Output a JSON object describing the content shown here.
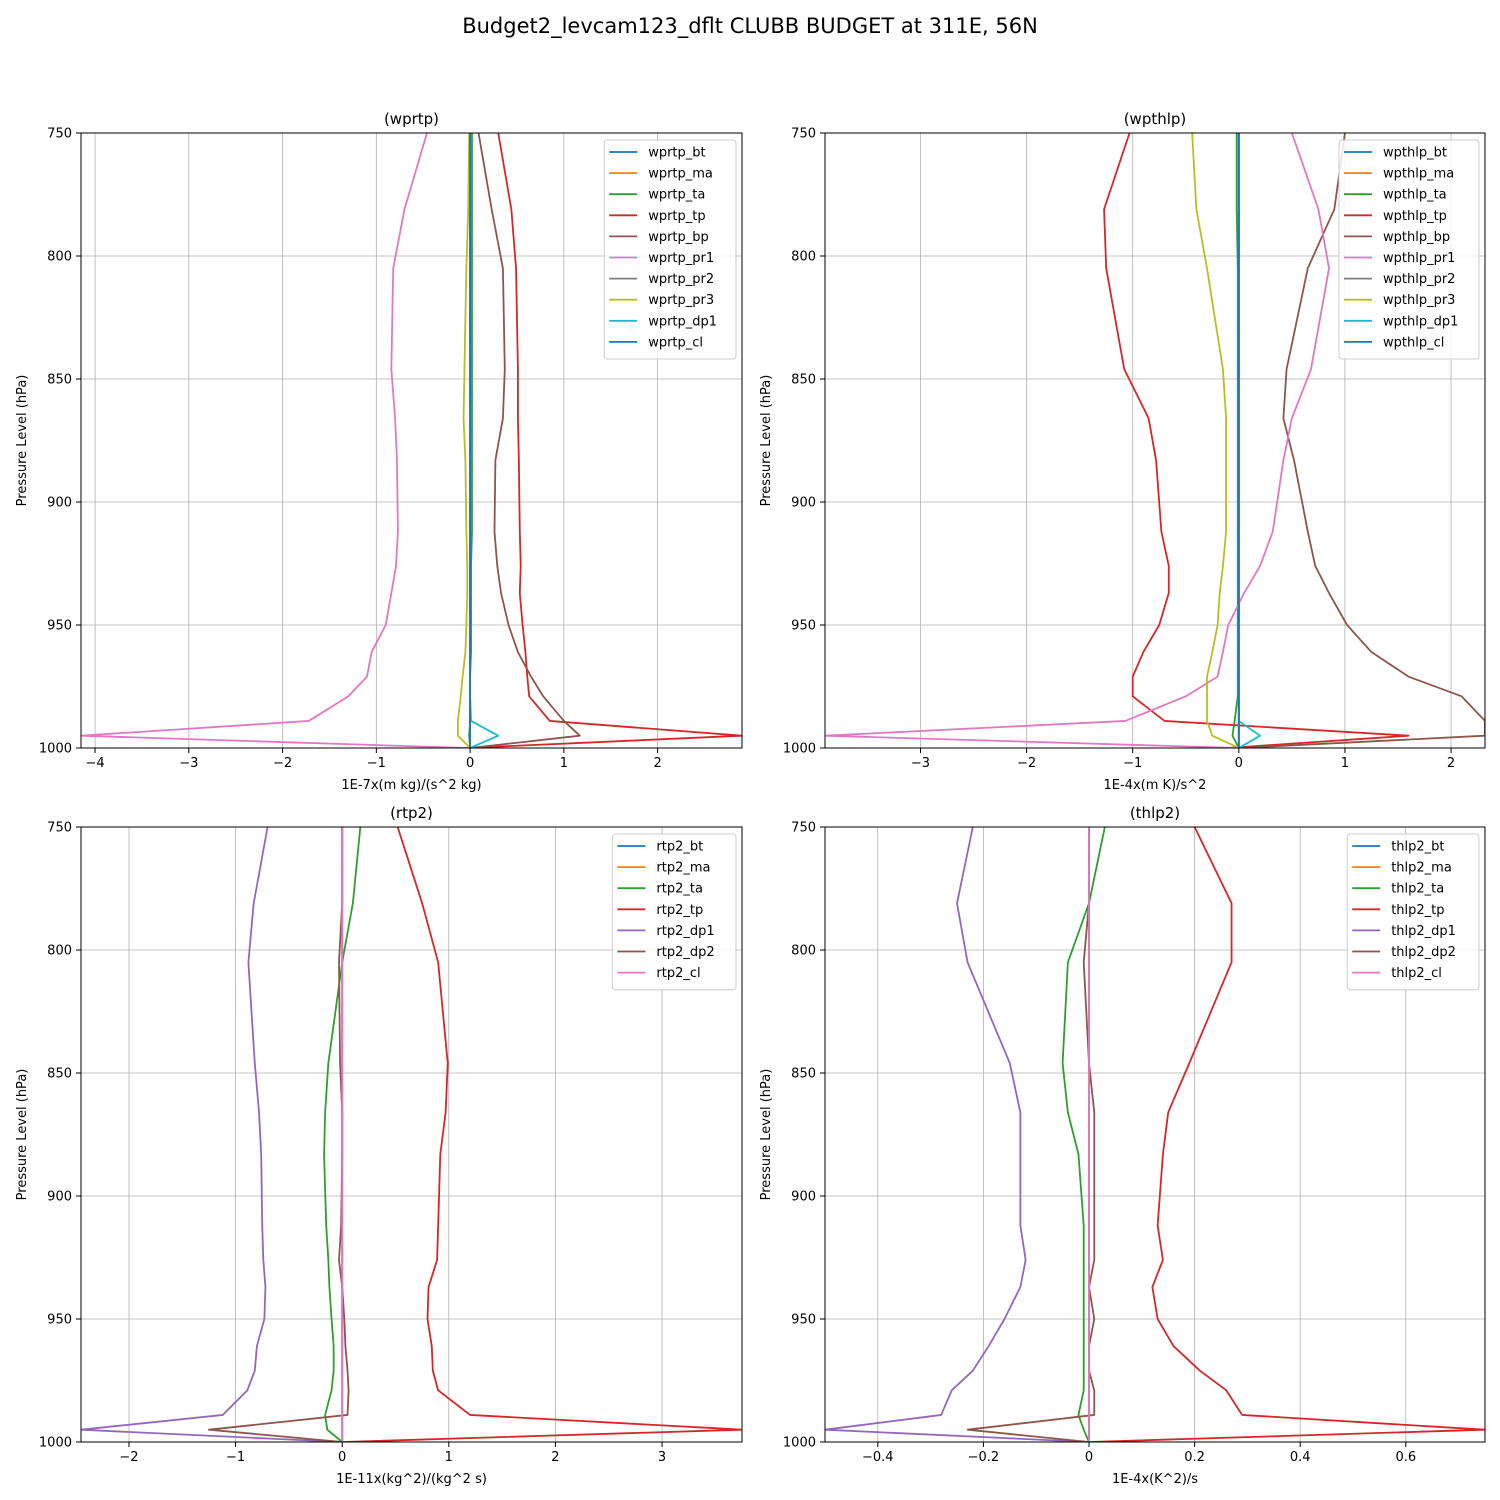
{
  "figure_title": "Budget2_levcam123_dflt CLUBB BUDGET at 311E, 56N",
  "colors": {
    "C0": "#1f77b4",
    "C1": "#ff7f0e",
    "C2": "#2ca02c",
    "C3": "#d62728",
    "C4": "#9467bd",
    "C5": "#8c564b",
    "C6": "#e377c2",
    "C7": "#7f7f7f",
    "C8": "#bcbd22",
    "C9": "#17becf",
    "grid": "#b0b0b0"
  },
  "chart_data": [
    {
      "type": "line",
      "title": "(wprtp)",
      "xlabel": "1E-7x(m kg)/(s^2 kg)",
      "ylabel": "Pressure Level (hPa)",
      "xlim": [
        -4.15,
        2.9
      ],
      "ylim": [
        1000,
        750
      ],
      "xticks": [
        -4,
        -3,
        -2,
        -1,
        0,
        1,
        2
      ],
      "yticks": [
        750,
        800,
        850,
        900,
        950,
        1000
      ],
      "grid": true,
      "legend_position": "top-right",
      "levels": [
        750,
        781,
        805,
        846,
        866,
        883,
        912,
        926,
        937,
        950,
        961,
        971,
        979,
        989,
        995,
        1000
      ],
      "series": [
        {
          "name": "wprtp_bt",
          "color": "C0",
          "values": [
            0,
            0,
            0,
            0,
            0,
            0,
            0,
            0,
            0,
            0,
            0,
            0,
            0,
            0,
            0,
            0
          ]
        },
        {
          "name": "wprtp_ma",
          "color": "C1",
          "values": [
            0,
            0,
            0,
            0,
            0,
            0,
            0,
            0,
            0,
            0,
            0,
            0,
            0,
            0,
            0,
            0
          ]
        },
        {
          "name": "wprtp_ta",
          "color": "C2",
          "values": [
            0.02,
            0.02,
            0.02,
            0.02,
            0.02,
            0.02,
            0.02,
            0.01,
            0.01,
            0.01,
            0.01,
            0.0,
            0.0,
            0.0,
            -0.01,
            0
          ]
        },
        {
          "name": "wprtp_tp",
          "color": "C3",
          "values": [
            0.3,
            0.44,
            0.49,
            0.51,
            0.51,
            0.52,
            0.53,
            0.54,
            0.53,
            0.56,
            0.59,
            0.61,
            0.63,
            0.85,
            2.9,
            -0.05
          ]
        },
        {
          "name": "wprtp_bp",
          "color": "C5",
          "values": [
            0.09,
            0.23,
            0.35,
            0.37,
            0.35,
            0.27,
            0.26,
            0.29,
            0.33,
            0.41,
            0.51,
            0.65,
            0.78,
            1.0,
            1.17,
            0.0
          ]
        },
        {
          "name": "wprtp_pr1",
          "color": "C6",
          "values": [
            -0.46,
            -0.7,
            -0.82,
            -0.84,
            -0.8,
            -0.78,
            -0.77,
            -0.79,
            -0.84,
            -0.9,
            -1.05,
            -1.1,
            -1.3,
            -1.72,
            -4.15,
            -0.02
          ]
        },
        {
          "name": "wprtp_pr2",
          "color": "C7",
          "values": [
            0,
            0,
            0,
            0,
            0,
            0,
            0,
            0,
            0,
            0,
            0,
            0,
            0,
            0,
            0,
            0
          ]
        },
        {
          "name": "wprtp_pr3",
          "color": "C8",
          "values": [
            -0.01,
            -0.02,
            -0.04,
            -0.06,
            -0.07,
            -0.05,
            -0.04,
            -0.03,
            -0.03,
            -0.04,
            -0.05,
            -0.08,
            -0.1,
            -0.13,
            -0.13,
            0
          ]
        },
        {
          "name": "wprtp_dp1",
          "color": "C9",
          "values": [
            0,
            0,
            0,
            0,
            0,
            0,
            0,
            0,
            0,
            0,
            0,
            0,
            0,
            0.01,
            0.3,
            0
          ]
        },
        {
          "name": "wprtp_cl",
          "color": "C0",
          "values": [
            0,
            0,
            0,
            0,
            0,
            0,
            0,
            0,
            0,
            0,
            0,
            0,
            0,
            0,
            0,
            0
          ]
        }
      ]
    },
    {
      "type": "line",
      "title": "(wpthlp)",
      "xlabel": "1E-4x(m K)/s^2",
      "ylabel": "Pressure Level (hPa)",
      "xlim": [
        -3.9,
        2.32
      ],
      "ylim": [
        1000,
        750
      ],
      "xticks": [
        -3,
        -2,
        -1,
        0,
        1,
        2
      ],
      "yticks": [
        750,
        800,
        850,
        900,
        950,
        1000
      ],
      "grid": true,
      "legend_position": "top-right",
      "levels": [
        750,
        781,
        805,
        846,
        866,
        883,
        912,
        926,
        937,
        950,
        961,
        971,
        979,
        989,
        995,
        1000
      ],
      "series": [
        {
          "name": "wpthlp_bt",
          "color": "C0",
          "values": [
            0,
            0,
            0,
            0,
            0,
            0,
            0,
            0,
            0,
            0,
            0,
            0,
            0,
            0,
            0,
            0
          ]
        },
        {
          "name": "wpthlp_ma",
          "color": "C1",
          "values": [
            0,
            0,
            0,
            0,
            0,
            0,
            0,
            0,
            0,
            0,
            0,
            0,
            0,
            0,
            0,
            0
          ]
        },
        {
          "name": "wpthlp_ta",
          "color": "C2",
          "values": [
            -0.02,
            -0.02,
            -0.01,
            -0.01,
            -0.01,
            -0.01,
            -0.01,
            -0.01,
            -0.01,
            -0.01,
            -0.01,
            -0.01,
            -0.01,
            -0.04,
            -0.06,
            0
          ]
        },
        {
          "name": "wpthlp_tp",
          "color": "C3",
          "values": [
            -1.03,
            -1.27,
            -1.25,
            -1.08,
            -0.85,
            -0.78,
            -0.73,
            -0.66,
            -0.66,
            -0.75,
            -0.9,
            -1.0,
            -1.0,
            -0.7,
            1.6,
            -0.1
          ]
        },
        {
          "name": "wpthlp_bp",
          "color": "C5",
          "values": [
            1.0,
            0.9,
            0.65,
            0.45,
            0.42,
            0.52,
            0.65,
            0.72,
            0.85,
            1.02,
            1.25,
            1.6,
            2.1,
            2.32,
            2.32,
            0.0
          ]
        },
        {
          "name": "wpthlp_pr1",
          "color": "C6",
          "values": [
            0.5,
            0.75,
            0.85,
            0.68,
            0.5,
            0.42,
            0.32,
            0.2,
            0.05,
            -0.1,
            -0.15,
            -0.2,
            -0.5,
            -1.07,
            -3.9,
            0
          ]
        },
        {
          "name": "wpthlp_pr2",
          "color": "C7",
          "values": [
            0,
            0,
            0,
            0,
            0,
            0,
            0,
            0,
            0,
            0,
            0,
            0,
            0,
            0,
            0,
            0
          ]
        },
        {
          "name": "wpthlp_pr3",
          "color": "C8",
          "values": [
            -0.44,
            -0.4,
            -0.3,
            -0.15,
            -0.12,
            -0.12,
            -0.12,
            -0.15,
            -0.18,
            -0.2,
            -0.25,
            -0.3,
            -0.3,
            -0.3,
            -0.25,
            0
          ]
        },
        {
          "name": "wpthlp_dp1",
          "color": "C9",
          "values": [
            0,
            0,
            0,
            0,
            0,
            0,
            0,
            0,
            0,
            0,
            0,
            0,
            0,
            0,
            0.2,
            0
          ]
        },
        {
          "name": "wpthlp_cl",
          "color": "C0",
          "values": [
            0,
            0,
            0,
            0,
            0,
            0,
            0,
            0,
            0,
            0,
            0,
            0,
            0,
            0,
            0,
            0
          ]
        }
      ]
    },
    {
      "type": "line",
      "title": "(rtp2)",
      "xlabel": "1E-11x(kg^2)/(kg^2 s)",
      "ylabel": "Pressure Level (hPa)",
      "xlim": [
        -2.45,
        3.75
      ],
      "ylim": [
        1000,
        750
      ],
      "xticks": [
        -2,
        -1,
        0,
        1,
        2,
        3
      ],
      "yticks": [
        750,
        800,
        850,
        900,
        950,
        1000
      ],
      "grid": true,
      "legend_position": "top-right",
      "levels": [
        750,
        781,
        805,
        846,
        866,
        883,
        912,
        926,
        937,
        950,
        961,
        971,
        979,
        989,
        995,
        1000
      ],
      "series": [
        {
          "name": "rtp2_bt",
          "color": "C0",
          "values": [
            0,
            0,
            0,
            0,
            0,
            0,
            0,
            0,
            0,
            0,
            0,
            0,
            0,
            0,
            0,
            0
          ]
        },
        {
          "name": "rtp2_ma",
          "color": "C1",
          "values": [
            0,
            0,
            0,
            0,
            0,
            0,
            0,
            0,
            0,
            0,
            0,
            0,
            0,
            0,
            0,
            0
          ]
        },
        {
          "name": "rtp2_ta",
          "color": "C2",
          "values": [
            0.17,
            0.1,
            0.0,
            -0.13,
            -0.16,
            -0.17,
            -0.15,
            -0.13,
            -0.12,
            -0.1,
            -0.08,
            -0.08,
            -0.1,
            -0.16,
            -0.14,
            0
          ]
        },
        {
          "name": "rtp2_tp",
          "color": "C3",
          "values": [
            0.52,
            0.75,
            0.9,
            0.99,
            0.97,
            0.92,
            0.9,
            0.89,
            0.81,
            0.8,
            0.84,
            0.85,
            0.9,
            1.2,
            3.75,
            0
          ]
        },
        {
          "name": "rtp2_dp1",
          "color": "C4",
          "values": [
            -0.7,
            -0.83,
            -0.88,
            -0.82,
            -0.78,
            -0.76,
            -0.75,
            -0.74,
            -0.72,
            -0.73,
            -0.8,
            -0.82,
            -0.89,
            -1.12,
            -2.45,
            0
          ]
        },
        {
          "name": "rtp2_dp2",
          "color": "C5",
          "values": [
            0,
            0,
            -0.03,
            -0.02,
            0,
            0,
            -0.01,
            -0.03,
            0,
            0.02,
            0.03,
            0.05,
            0.06,
            0.05,
            -1.25,
            0
          ]
        },
        {
          "name": "rtp2_cl",
          "color": "C6",
          "values": [
            0,
            0,
            0,
            0,
            0,
            0,
            0,
            0,
            0,
            0,
            0,
            0,
            0,
            0,
            0,
            0
          ]
        }
      ]
    },
    {
      "type": "line",
      "title": "(thlp2)",
      "xlabel": "1E-4x(K^2)/s",
      "ylabel": "Pressure Level (hPa)",
      "xlim": [
        -0.5,
        0.75
      ],
      "ylim": [
        1000,
        750
      ],
      "xticks": [
        -0.4,
        -0.2,
        0.0,
        0.2,
        0.4,
        0.6
      ],
      "yticks": [
        750,
        800,
        850,
        900,
        950,
        1000
      ],
      "grid": true,
      "legend_position": "top-right",
      "levels": [
        750,
        781,
        805,
        846,
        866,
        883,
        912,
        926,
        937,
        950,
        961,
        971,
        979,
        989,
        995,
        1000
      ],
      "series": [
        {
          "name": "thlp2_bt",
          "color": "C0",
          "values": [
            0,
            0,
            0,
            0,
            0,
            0,
            0,
            0,
            0,
            0,
            0,
            0,
            0,
            0,
            0,
            0
          ]
        },
        {
          "name": "thlp2_ma",
          "color": "C1",
          "values": [
            0,
            0,
            0,
            0,
            0,
            0,
            0,
            0,
            0,
            0,
            0,
            0,
            0,
            0,
            0,
            0
          ]
        },
        {
          "name": "thlp2_ta",
          "color": "C2",
          "values": [
            0.03,
            0.0,
            -0.04,
            -0.05,
            -0.04,
            -0.02,
            -0.01,
            -0.01,
            -0.01,
            -0.01,
            -0.01,
            -0.01,
            -0.01,
            -0.02,
            -0.01,
            0
          ]
        },
        {
          "name": "thlp2_tp",
          "color": "C3",
          "values": [
            0.2,
            0.27,
            0.27,
            0.19,
            0.15,
            0.14,
            0.13,
            0.14,
            0.12,
            0.13,
            0.16,
            0.21,
            0.26,
            0.29,
            0.75,
            0
          ]
        },
        {
          "name": "thlp2_dp1",
          "color": "C4",
          "values": [
            -0.22,
            -0.25,
            -0.23,
            -0.15,
            -0.13,
            -0.13,
            -0.13,
            -0.12,
            -0.13,
            -0.16,
            -0.19,
            -0.22,
            -0.26,
            -0.28,
            -0.5,
            0
          ]
        },
        {
          "name": "thlp2_dp2",
          "color": "C5",
          "values": [
            0,
            0,
            -0.01,
            0.0,
            0.01,
            0.01,
            0.01,
            0.01,
            0.0,
            0.01,
            0.0,
            0.0,
            0.01,
            0.01,
            -0.23,
            0
          ]
        },
        {
          "name": "thlp2_cl",
          "color": "C6",
          "values": [
            0,
            0,
            0,
            0,
            0,
            0,
            0,
            0,
            0,
            0,
            0,
            0,
            0,
            0,
            0,
            0
          ]
        }
      ]
    }
  ]
}
